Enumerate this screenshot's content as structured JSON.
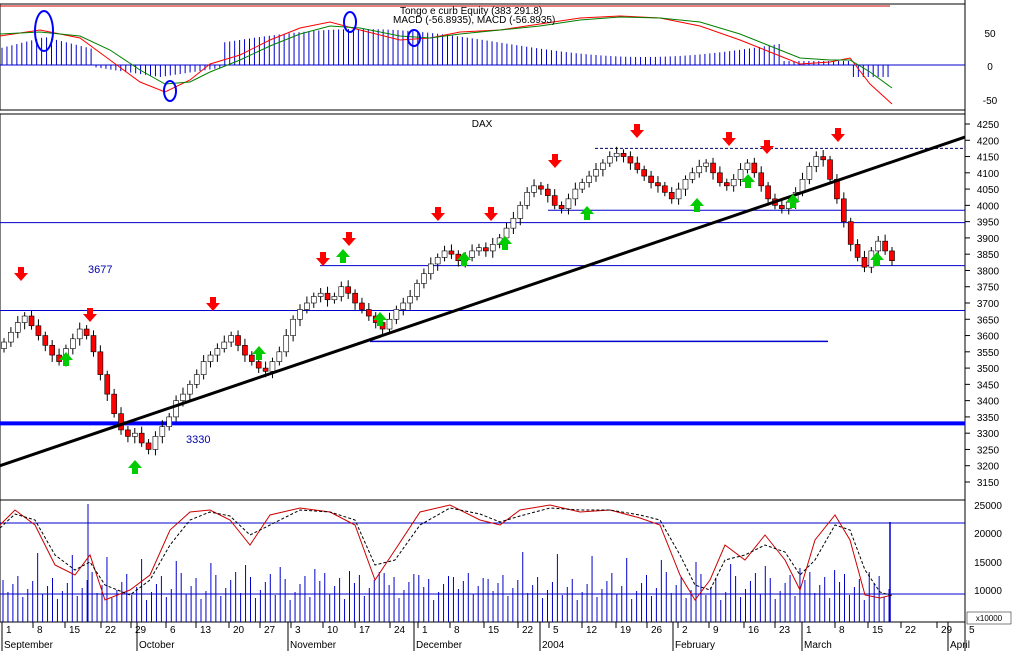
{
  "top_panel": {
    "equity_label": "Tongo e curb Equity (383 291.8)",
    "macd_label": "MACD (-56.8935), MACD (-56.8935)",
    "ticks": [
      "50",
      "0",
      "-50"
    ]
  },
  "main_panel": {
    "title": "DAX",
    "ticks": [
      "4250",
      "4200",
      "4150",
      "4100",
      "4050",
      "4000",
      "3950",
      "3900",
      "3850",
      "3800",
      "3750",
      "3700",
      "3650",
      "3600",
      "3550",
      "3500",
      "3450",
      "3400",
      "3350",
      "3300",
      "3250",
      "3200",
      "3150"
    ],
    "annotations": [
      "3677",
      "3330"
    ]
  },
  "bottom_panel": {
    "ticks": [
      "25000",
      "20000",
      "15000",
      "10000"
    ],
    "unit": "x10000"
  },
  "x_axis": {
    "day_labels": [
      "1",
      "8",
      "15",
      "22",
      "29",
      "6",
      "13",
      "20",
      "27",
      "3",
      "10",
      "17",
      "24",
      "1",
      "8",
      "15",
      "22",
      "5",
      "12",
      "19",
      "26",
      "2",
      "9",
      "16",
      "23",
      "1",
      "8",
      "15",
      "22",
      "29",
      "5"
    ],
    "month_labels": [
      "September",
      "October",
      "November",
      "December",
      "2004",
      "February",
      "March",
      "April"
    ]
  },
  "colors": {
    "up_candle": "#ffffff",
    "down_candle": "#ff0000",
    "signal_down": "#ff0000",
    "signal_up": "#00cc00",
    "support_line": "#0000cc",
    "trend_line": "#000000",
    "histogram": "#0000cc",
    "macd_line": "#ff0000",
    "signal_line": "#008000"
  },
  "chart_data": {
    "type": "candlestick",
    "title": "DAX",
    "ylim": [
      3150,
      4250
    ],
    "support_levels": [
      4175,
      3985,
      3947,
      3815,
      3677,
      3582,
      3330
    ],
    "trend_line": {
      "from": {
        "x": "2003-09-01",
        "y": 3200
      },
      "to": {
        "x": "2004-04-05",
        "y": 4210
      }
    },
    "closes": [
      3580,
      3610,
      3640,
      3660,
      3630,
      3600,
      3570,
      3540,
      3520,
      3560,
      3590,
      3620,
      3600,
      3550,
      3480,
      3420,
      3360,
      3310,
      3290,
      3300,
      3270,
      3250,
      3290,
      3320,
      3350,
      3400,
      3420,
      3450,
      3480,
      3520,
      3540,
      3560,
      3580,
      3600,
      3570,
      3540,
      3520,
      3500,
      3490,
      3520,
      3550,
      3600,
      3650,
      3680,
      3700,
      3720,
      3730,
      3710,
      3720,
      3750,
      3730,
      3700,
      3680,
      3660,
      3640,
      3620,
      3650,
      3680,
      3700,
      3720,
      3760,
      3790,
      3820,
      3840,
      3860,
      3850,
      3830,
      3840,
      3860,
      3870,
      3860,
      3880,
      3900,
      3930,
      3960,
      4000,
      4040,
      4060,
      4050,
      4030,
      4000,
      3990,
      4020,
      4050,
      4070,
      4090,
      4110,
      4130,
      4150,
      4160,
      4150,
      4130,
      4110,
      4090,
      4070,
      4060,
      4040,
      4020,
      4050,
      4080,
      4100,
      4120,
      4130,
      4100,
      4070,
      4060,
      4080,
      4110,
      4130,
      4100,
      4060,
      4020,
      4000,
      3990,
      4010,
      4040,
      4080,
      4120,
      4150,
      4140,
      4080,
      4020,
      3950,
      3880,
      3840,
      3810,
      3860,
      3890,
      3860,
      3830
    ]
  }
}
